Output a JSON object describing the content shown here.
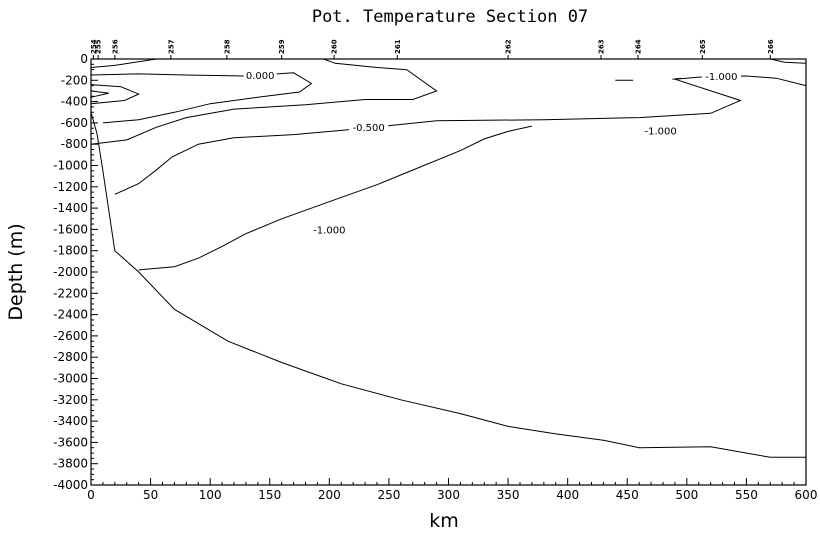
{
  "chart_data": {
    "type": "contour",
    "title": "Pot. Temperature Section 07",
    "xlabel": "km",
    "ylabel": "Depth (m)",
    "xlim": [
      0,
      600
    ],
    "ylim": [
      -4000,
      0
    ],
    "x_ticks": [
      "0",
      "50",
      "100",
      "150",
      "200",
      "250",
      "300",
      "350",
      "400",
      "450",
      "500",
      "550",
      "600"
    ],
    "y_ticks": [
      "0",
      "-200",
      "-400",
      "-600",
      "-800",
      "-1000",
      "-1200",
      "-1400",
      "-1600",
      "-1800",
      "-2000",
      "-2200",
      "-2400",
      "-2600",
      "-2800",
      "-3000",
      "-3200",
      "-3400",
      "-3600",
      "-3800",
      "-4000"
    ],
    "stations": [
      {
        "label": "254",
        "km": 2
      },
      {
        "label": "255",
        "km": 6
      },
      {
        "label": "256",
        "km": 20
      },
      {
        "label": "257",
        "km": 67
      },
      {
        "label": "258",
        "km": 114
      },
      {
        "label": "259",
        "km": 160
      },
      {
        "label": "260",
        "km": 204
      },
      {
        "label": "261",
        "km": 257
      },
      {
        "label": "262",
        "km": 350
      },
      {
        "label": "263",
        "km": 428
      },
      {
        "label": "264",
        "km": 459
      },
      {
        "label": "265",
        "km": 513
      },
      {
        "label": "266",
        "km": 570
      }
    ],
    "bottom": [
      [
        0,
        -500
      ],
      [
        5,
        -700
      ],
      [
        10,
        -1050
      ],
      [
        20,
        -1800
      ],
      [
        40,
        -2000
      ],
      [
        70,
        -2350
      ],
      [
        115,
        -2650
      ],
      [
        160,
        -2850
      ],
      [
        210,
        -3050
      ],
      [
        260,
        -3200
      ],
      [
        310,
        -3330
      ],
      [
        350,
        -3450
      ],
      [
        390,
        -3520
      ],
      [
        430,
        -3580
      ],
      [
        460,
        -3650
      ],
      [
        520,
        -3640
      ],
      [
        570,
        -3740
      ],
      [
        600,
        -3740
      ]
    ],
    "contours": [
      {
        "level": "0.000",
        "label_at": [
          142,
          -150
        ],
        "points": [
          [
            0,
            -150
          ],
          [
            40,
            -140
          ],
          [
            80,
            -150
          ],
          [
            130,
            -160
          ],
          [
            170,
            -130
          ],
          [
            185,
            -230
          ],
          [
            175,
            -310
          ],
          [
            140,
            -360
          ],
          [
            100,
            -420
          ],
          [
            70,
            -500
          ],
          [
            40,
            -570
          ],
          [
            10,
            -600
          ]
        ]
      },
      {
        "level": "-0.500",
        "label_at": [
          233,
          -640
        ],
        "points": [
          [
            0,
            -800
          ],
          [
            30,
            -760
          ],
          [
            55,
            -640
          ],
          [
            80,
            -550
          ],
          [
            120,
            -470
          ],
          [
            180,
            -430
          ],
          [
            230,
            -380
          ],
          [
            270,
            -380
          ],
          [
            290,
            -300
          ],
          [
            265,
            -100
          ],
          [
            240,
            -80
          ],
          [
            205,
            -40
          ],
          [
            195,
            0
          ]
        ]
      },
      {
        "level": "-1.000",
        "label_at": [
          478,
          -670
        ],
        "points": [
          [
            20,
            -1270
          ],
          [
            40,
            -1170
          ],
          [
            55,
            -1040
          ],
          [
            68,
            -920
          ],
          [
            90,
            -800
          ],
          [
            120,
            -740
          ],
          [
            170,
            -710
          ],
          [
            230,
            -650
          ],
          [
            290,
            -580
          ],
          [
            380,
            -570
          ],
          [
            460,
            -550
          ],
          [
            520,
            -510
          ],
          [
            545,
            -390
          ],
          [
            490,
            -190
          ],
          [
            510,
            -170
          ],
          [
            550,
            -160
          ],
          [
            575,
            -180
          ],
          [
            600,
            -250
          ]
        ]
      },
      {
        "level": "-1.000",
        "label_at": [
          200,
          -1600
        ],
        "points": [
          [
            40,
            -1980
          ],
          [
            70,
            -1950
          ],
          [
            90,
            -1870
          ],
          [
            110,
            -1760
          ],
          [
            130,
            -1640
          ],
          [
            160,
            -1500
          ],
          [
            200,
            -1340
          ],
          [
            240,
            -1180
          ],
          [
            275,
            -1020
          ],
          [
            310,
            -860
          ],
          [
            330,
            -750
          ],
          [
            350,
            -680
          ],
          [
            370,
            -630
          ]
        ]
      },
      {
        "level": "-1.000",
        "label_at": [
          529,
          -160
        ],
        "points": [
          [
            488,
            -190
          ],
          [
            495,
            -180
          ]
        ]
      },
      {
        "level": "",
        "label_at": null,
        "points": [
          [
            440,
            -200
          ],
          [
            455,
            -200
          ]
        ]
      },
      {
        "level": "",
        "label_at": null,
        "points": [
          [
            0,
            -80
          ],
          [
            20,
            -60
          ],
          [
            55,
            0
          ]
        ]
      },
      {
        "level": "",
        "label_at": null,
        "points": [
          [
            0,
            -240
          ],
          [
            25,
            -260
          ],
          [
            40,
            -330
          ],
          [
            28,
            -390
          ],
          [
            0,
            -420
          ]
        ]
      },
      {
        "level": "",
        "label_at": null,
        "points": [
          [
            0,
            -300
          ],
          [
            15,
            -320
          ],
          [
            0,
            -360
          ]
        ]
      },
      {
        "level": "",
        "label_at": null,
        "points": [
          [
            570,
            0
          ],
          [
            582,
            -30
          ],
          [
            600,
            -40
          ]
        ]
      }
    ],
    "grid": false
  }
}
